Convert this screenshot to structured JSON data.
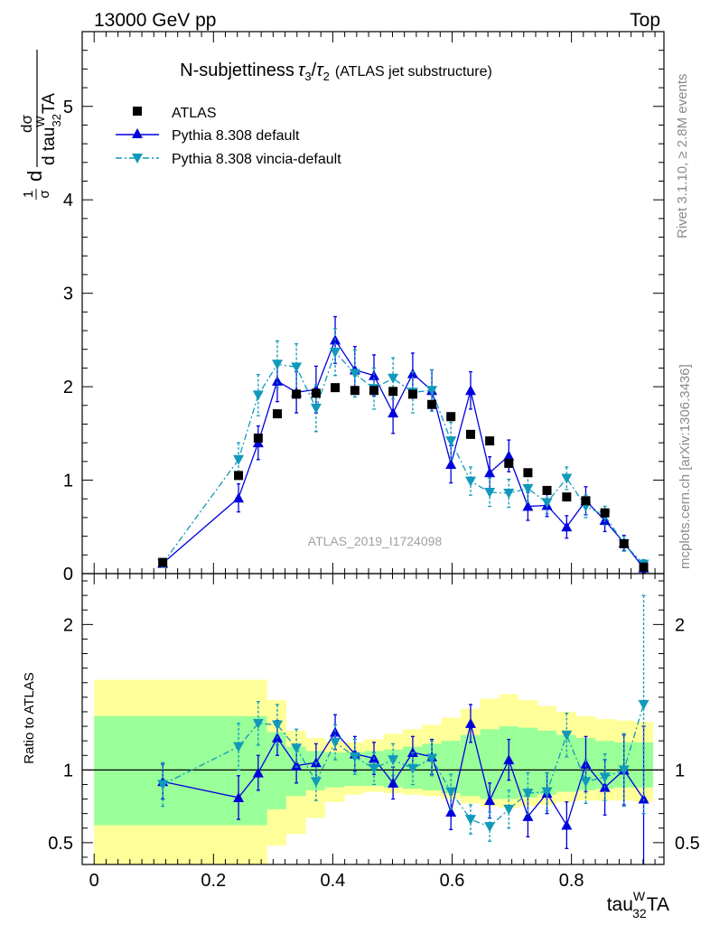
{
  "header": {
    "left": "13000 GeV pp",
    "right": "Top"
  },
  "side_labels": {
    "rivet": "Rivet 3.1.10, ≥ 2.8M events",
    "mcplots": "mcplots.cern.ch [arXiv:1306.3436]"
  },
  "colors": {
    "atlas": "#000000",
    "default": "#0000dd",
    "vincia": "#1199bb",
    "band_green": "#99ff99",
    "band_yellow": "#ffff99"
  },
  "chart_data": [
    {
      "type": "scatter",
      "title": {
        "main": "N-subjettiness",
        "sym1": "τ",
        "sub1": "3",
        "slash": "/",
        "sym2": "τ",
        "sub2": "2",
        "note": "(ATLAS jet substructure)"
      },
      "ylabel": {
        "frac1": "1",
        "frac1_den": "σ",
        "d": "d",
        "dsigma": "dσ",
        "dvar": "d tau",
        "sup": "W",
        "sub": "32",
        "ta": "TA"
      },
      "watermark": "ATLAS_2019_I1724098",
      "xlim": [
        -0.02,
        0.955
      ],
      "ylim": [
        0,
        5.8
      ],
      "yticks": [
        0,
        1,
        2,
        3,
        4,
        5
      ],
      "legend_position": "top-left",
      "series": [
        {
          "name": "ATLAS",
          "marker": "square",
          "x": [
            0.115,
            0.242,
            0.275,
            0.307,
            0.339,
            0.372,
            0.404,
            0.437,
            0.469,
            0.501,
            0.534,
            0.566,
            0.598,
            0.631,
            0.663,
            0.695,
            0.727,
            0.759,
            0.792,
            0.824,
            0.856,
            0.888,
            0.921
          ],
          "y": [
            0.12,
            1.05,
            1.45,
            1.71,
            1.92,
            1.93,
            1.99,
            1.96,
            1.96,
            1.95,
            1.92,
            1.81,
            1.68,
            1.49,
            1.42,
            1.18,
            1.08,
            0.89,
            0.82,
            0.78,
            0.65,
            0.32,
            0.07
          ]
        },
        {
          "name": "Pythia 8.308 default",
          "marker": "triangle-up",
          "line": "solid",
          "x": [
            0.115,
            0.242,
            0.275,
            0.307,
            0.339,
            0.372,
            0.404,
            0.437,
            0.469,
            0.501,
            0.534,
            0.566,
            0.598,
            0.631,
            0.663,
            0.695,
            0.727,
            0.759,
            0.792,
            0.824,
            0.856,
            0.888,
            0.921
          ],
          "y": [
            0.11,
            0.81,
            1.4,
            2.06,
            1.94,
            1.97,
            2.5,
            2.18,
            2.12,
            1.72,
            2.14,
            1.96,
            1.17,
            1.96,
            1.08,
            1.26,
            0.72,
            0.73,
            0.5,
            0.78,
            0.57,
            0.33,
            0.06
          ],
          "err": [
            0.04,
            0.15,
            0.18,
            0.22,
            0.22,
            0.25,
            0.25,
            0.25,
            0.22,
            0.22,
            0.22,
            0.22,
            0.2,
            0.2,
            0.17,
            0.17,
            0.15,
            0.12,
            0.12,
            0.15,
            0.12,
            0.08,
            0.05
          ]
        },
        {
          "name": "Pythia 8.308 vincia-default",
          "marker": "triangle-down",
          "line": "dashdot",
          "x": [
            0.115,
            0.242,
            0.275,
            0.307,
            0.339,
            0.372,
            0.404,
            0.437,
            0.469,
            0.501,
            0.534,
            0.566,
            0.598,
            0.631,
            0.663,
            0.695,
            0.727,
            0.759,
            0.792,
            0.824,
            0.856,
            0.888,
            0.921
          ],
          "y": [
            0.11,
            1.22,
            1.91,
            2.24,
            2.21,
            1.77,
            2.37,
            2.14,
            1.98,
            2.09,
            1.94,
            1.96,
            1.42,
            0.99,
            0.87,
            0.86,
            0.91,
            0.76,
            1.02,
            0.72,
            0.62,
            0.32,
            0.1
          ],
          "err": [
            0.04,
            0.18,
            0.22,
            0.25,
            0.25,
            0.25,
            0.25,
            0.25,
            0.22,
            0.22,
            0.22,
            0.22,
            0.2,
            0.15,
            0.15,
            0.15,
            0.15,
            0.12,
            0.12,
            0.12,
            0.1,
            0.08,
            0.05
          ]
        }
      ]
    },
    {
      "type": "scatter",
      "ylabel": "Ratio to ATLAS",
      "xlabel": {
        "main": "tau",
        "sup": "W",
        "sub": "32",
        "ta": "TA"
      },
      "xlim": [
        -0.02,
        0.955
      ],
      "ylim": [
        0.35,
        2.35
      ],
      "yticks": [
        0.5,
        1,
        2
      ],
      "ytick_labels": [
        "0.5",
        "1",
        "2"
      ],
      "xticks": [
        0,
        0.2,
        0.4,
        0.6,
        0.8
      ],
      "xtick_labels": [
        "0",
        "0.2",
        "0.4",
        "0.6",
        "0.8"
      ],
      "bands": {
        "edges": [
          0.0,
          0.235,
          0.29,
          0.322,
          0.355,
          0.387,
          0.42,
          0.452,
          0.485,
          0.517,
          0.55,
          0.582,
          0.614,
          0.647,
          0.679,
          0.711,
          0.743,
          0.775,
          0.808,
          0.84,
          0.872,
          0.905,
          0.937
        ],
        "green_lo": [
          0.62,
          0.62,
          0.73,
          0.82,
          0.86,
          0.88,
          0.89,
          0.89,
          0.88,
          0.87,
          0.86,
          0.84,
          0.82,
          0.8,
          0.8,
          0.81,
          0.83,
          0.85,
          0.86,
          0.87,
          0.88,
          0.88
        ],
        "green_hi": [
          1.37,
          1.37,
          1.26,
          1.16,
          1.13,
          1.12,
          1.12,
          1.13,
          1.14,
          1.16,
          1.18,
          1.2,
          1.24,
          1.28,
          1.3,
          1.29,
          1.27,
          1.24,
          1.22,
          1.2,
          1.19,
          1.19
        ],
        "yellow_lo": [
          0.35,
          0.35,
          0.48,
          0.56,
          0.67,
          0.78,
          0.83,
          0.85,
          0.84,
          0.83,
          0.82,
          0.8,
          0.77,
          0.75,
          0.74,
          0.75,
          0.76,
          0.78,
          0.79,
          0.79,
          0.79,
          0.78
        ],
        "yellow_hi": [
          1.62,
          1.62,
          1.48,
          1.27,
          1.22,
          1.2,
          1.19,
          1.21,
          1.25,
          1.28,
          1.31,
          1.36,
          1.42,
          1.49,
          1.52,
          1.48,
          1.44,
          1.4,
          1.37,
          1.35,
          1.34,
          1.33
        ]
      },
      "series": [
        {
          "name": "Pythia 8.308 default",
          "marker": "triangle-up",
          "line": "solid",
          "x": [
            0.115,
            0.242,
            0.275,
            0.307,
            0.339,
            0.372,
            0.404,
            0.437,
            0.469,
            0.501,
            0.534,
            0.566,
            0.598,
            0.631,
            0.663,
            0.695,
            0.727,
            0.759,
            0.792,
            0.824,
            0.856,
            0.888,
            0.921
          ],
          "y": [
            0.92,
            0.81,
            0.98,
            1.22,
            1.03,
            1.05,
            1.26,
            1.11,
            1.08,
            0.91,
            1.12,
            1.09,
            0.71,
            1.32,
            0.79,
            1.07,
            0.68,
            0.84,
            0.62,
            1.04,
            0.88,
            1.0,
            0.8
          ],
          "err": [
            0.12,
            0.15,
            0.12,
            0.12,
            0.12,
            0.13,
            0.12,
            0.12,
            0.11,
            0.11,
            0.11,
            0.12,
            0.12,
            0.13,
            0.12,
            0.14,
            0.14,
            0.14,
            0.16,
            0.19,
            0.19,
            0.24,
            0.5
          ]
        },
        {
          "name": "Pythia 8.308 vincia-default",
          "marker": "triangle-down",
          "line": "dashdot",
          "x": [
            0.115,
            0.242,
            0.275,
            0.307,
            0.339,
            0.372,
            0.404,
            0.437,
            0.469,
            0.501,
            0.534,
            0.566,
            0.598,
            0.631,
            0.663,
            0.695,
            0.727,
            0.759,
            0.792,
            0.824,
            0.856,
            0.888,
            0.921
          ],
          "y": [
            0.9,
            1.16,
            1.32,
            1.31,
            1.15,
            0.92,
            1.19,
            1.09,
            1.01,
            1.07,
            1.01,
            1.08,
            0.85,
            0.66,
            0.61,
            0.73,
            0.84,
            0.85,
            1.24,
            0.92,
            0.95,
            1.0,
            1.45
          ],
          "err": [
            0.15,
            0.16,
            0.15,
            0.14,
            0.13,
            0.13,
            0.12,
            0.12,
            0.11,
            0.11,
            0.11,
            0.12,
            0.12,
            0.1,
            0.1,
            0.13,
            0.14,
            0.13,
            0.15,
            0.15,
            0.16,
            0.25,
            0.75
          ]
        }
      ]
    }
  ]
}
